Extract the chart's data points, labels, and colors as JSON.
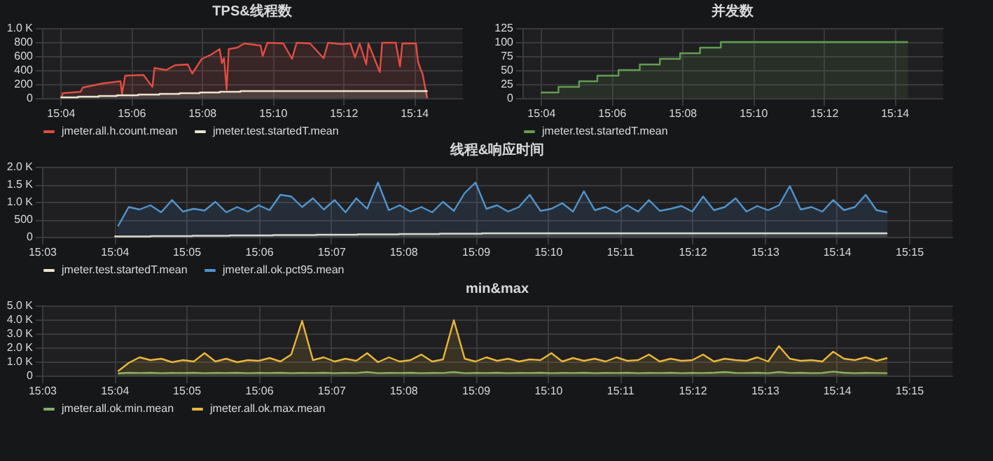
{
  "chart_data": [
    {
      "type": "area",
      "title": "TPS&线程数",
      "xlim": [
        15.058,
        15.256
      ],
      "xticks": [
        {
          "value": 15.0667,
          "label": "15:04"
        },
        {
          "value": 15.1,
          "label": "15:06"
        },
        {
          "value": 15.1333,
          "label": "15:08"
        },
        {
          "value": 15.1667,
          "label": "15:10"
        },
        {
          "value": 15.2,
          "label": "15:12"
        },
        {
          "value": 15.2333,
          "label": "15:14"
        }
      ],
      "ylim": [
        0,
        1000
      ],
      "yticks": [
        0,
        200,
        400,
        600,
        800,
        {
          "value": 1000,
          "label": "1.0 K"
        }
      ],
      "grid": true,
      "legend": "bottom",
      "series": [
        {
          "name": "jmeter.all.h.count.mean",
          "color": "#e24d42",
          "x": [
            15.0673,
            15.0678,
            15.0762,
            15.0772,
            15.0867,
            15.095,
            15.0957,
            15.0972,
            15.1058,
            15.11,
            15.111,
            15.1165,
            15.1207,
            15.1267,
            15.1288,
            15.1333,
            15.1377,
            15.1417,
            15.1428,
            15.1438,
            15.145,
            15.146,
            15.15,
            15.1533,
            15.161,
            15.162,
            15.1642,
            15.1717,
            15.1758,
            15.178,
            15.1843,
            15.1907,
            15.1928,
            15.1992,
            15.2033,
            15.2055,
            15.2077,
            15.2108,
            15.2118,
            15.2172,
            15.2183,
            15.2247,
            15.2267,
            15.2278,
            15.2333,
            15.2342,
            15.2352,
            15.2363,
            15.2373,
            15.2395
          ],
          "values": [
            20,
            70,
            90,
            150,
            210,
            240,
            60,
            320,
            330,
            160,
            430,
            400,
            470,
            480,
            350,
            560,
            620,
            700,
            500,
            570,
            120,
            700,
            720,
            780,
            750,
            600,
            790,
            780,
            560,
            790,
            780,
            570,
            790,
            770,
            780,
            580,
            780,
            480,
            780,
            370,
            790,
            790,
            450,
            780,
            780,
            780,
            520,
            420,
            350,
            0
          ]
        },
        {
          "name": "jmeter.test.startedT.mean",
          "color": "#eae6d0",
          "type": "step",
          "x": [
            15.0667,
            15.075,
            15.0847,
            15.0933,
            15.1033,
            15.1133,
            15.1228,
            15.1323,
            15.1417,
            15.1515,
            15.2397
          ],
          "values": [
            10,
            20,
            30,
            40,
            50,
            60,
            70,
            80,
            90,
            100,
            100
          ]
        }
      ]
    },
    {
      "type": "area",
      "title": "并发数",
      "xlim": [
        15.058,
        15.256
      ],
      "xticks": [
        {
          "value": 15.0667,
          "label": "15:04"
        },
        {
          "value": 15.1,
          "label": "15:06"
        },
        {
          "value": 15.1333,
          "label": "15:08"
        },
        {
          "value": 15.1667,
          "label": "15:10"
        },
        {
          "value": 15.2,
          "label": "15:12"
        },
        {
          "value": 15.2333,
          "label": "15:14"
        }
      ],
      "ylim": [
        0,
        125
      ],
      "yticks": [
        0,
        25,
        50,
        75,
        100,
        125
      ],
      "grid": true,
      "legend": "bottom",
      "series": [
        {
          "name": "jmeter.test.startedT.mean",
          "color": "#629e51",
          "x": [
            15.0667,
            15.075,
            15.075,
            15.0847,
            15.0847,
            15.0933,
            15.0933,
            15.1033,
            15.1033,
            15.1133,
            15.1133,
            15.1228,
            15.1228,
            15.1323,
            15.1323,
            15.1417,
            15.1417,
            15.1515,
            15.1515,
            15.2397
          ],
          "values": [
            10,
            10,
            20,
            20,
            30,
            30,
            40,
            40,
            50,
            50,
            60,
            60,
            70,
            70,
            80,
            80,
            90,
            90,
            100,
            100
          ]
        }
      ]
    },
    {
      "type": "area",
      "title": "线程&响应时间",
      "xlim": [
        15.05,
        15.26
      ],
      "xticks": [
        {
          "value": 15.05,
          "label": "15:03"
        },
        {
          "value": 15.0667,
          "label": "15:04"
        },
        {
          "value": 15.0833,
          "label": "15:05"
        },
        {
          "value": 15.1,
          "label": "15:06"
        },
        {
          "value": 15.1167,
          "label": "15:07"
        },
        {
          "value": 15.1333,
          "label": "15:08"
        },
        {
          "value": 15.15,
          "label": "15:09"
        },
        {
          "value": 15.1667,
          "label": "15:10"
        },
        {
          "value": 15.1833,
          "label": "15:11"
        },
        {
          "value": 15.2,
          "label": "15:12"
        },
        {
          "value": 15.2167,
          "label": "15:13"
        },
        {
          "value": 15.2333,
          "label": "15:14"
        },
        {
          "value": 15.25,
          "label": "15:15"
        }
      ],
      "ylim": [
        0,
        2000
      ],
      "yticks": [
        0,
        500,
        {
          "value": 1000,
          "label": "1.0 K"
        },
        {
          "value": 1500,
          "label": "1.5 K"
        },
        {
          "value": 2000,
          "label": "2.0 K"
        }
      ],
      "grid": true,
      "legend": "bottom",
      "x": [
        15.0675,
        15.07,
        15.0725,
        15.075,
        15.0775,
        15.08,
        15.0825,
        15.085,
        15.0875,
        15.09,
        15.0925,
        15.095,
        15.0975,
        15.1,
        15.1025,
        15.105,
        15.1075,
        15.11,
        15.1125,
        15.115,
        15.1175,
        15.12,
        15.1225,
        15.125,
        15.1275,
        15.13,
        15.1325,
        15.135,
        15.1375,
        15.14,
        15.1425,
        15.145,
        15.1475,
        15.15,
        15.1525,
        15.155,
        15.1575,
        15.16,
        15.1625,
        15.165,
        15.1675,
        15.17,
        15.1725,
        15.175,
        15.1775,
        15.18,
        15.1825,
        15.185,
        15.1875,
        15.19,
        15.1925,
        15.195,
        15.1975,
        15.2,
        15.2025,
        15.205,
        15.2075,
        15.21,
        15.2125,
        15.215,
        15.2175,
        15.22,
        15.2225,
        15.225,
        15.2275,
        15.23,
        15.2325,
        15.235,
        15.2375,
        15.24,
        15.2425,
        15.245
      ],
      "series": [
        {
          "name": "jmeter.test.startedT.mean",
          "color": "#eae6d0",
          "type": "step",
          "x": [
            15.0667,
            15.075,
            15.0847,
            15.0933,
            15.1033,
            15.1133,
            15.1228,
            15.1323,
            15.1417,
            15.1515,
            15.245
          ],
          "values": [
            10,
            20,
            30,
            40,
            50,
            60,
            70,
            80,
            90,
            100,
            100
          ]
        },
        {
          "name": "jmeter.all.ok.pct95.mean",
          "color": "#5195ce",
          "values": [
            300,
            850,
            780,
            900,
            700,
            1050,
            720,
            800,
            750,
            1000,
            700,
            850,
            720,
            900,
            760,
            1200,
            1150,
            850,
            1100,
            780,
            1050,
            700,
            1100,
            800,
            1550,
            760,
            900,
            720,
            850,
            700,
            1000,
            740,
            1250,
            1550,
            800,
            900,
            720,
            850,
            1200,
            740,
            800,
            960,
            720,
            1300,
            760,
            850,
            700,
            900,
            720,
            1050,
            740,
            800,
            880,
            720,
            1150,
            760,
            850,
            1100,
            720,
            880,
            760,
            900,
            1450,
            780,
            850,
            720,
            1050,
            760,
            850,
            1200,
            760,
            700
          ]
        }
      ]
    },
    {
      "type": "area",
      "title": "min&max",
      "xlim": [
        15.05,
        15.26
      ],
      "xticks": [
        {
          "value": 15.05,
          "label": "15:03"
        },
        {
          "value": 15.0667,
          "label": "15:04"
        },
        {
          "value": 15.0833,
          "label": "15:05"
        },
        {
          "value": 15.1,
          "label": "15:06"
        },
        {
          "value": 15.1167,
          "label": "15:07"
        },
        {
          "value": 15.1333,
          "label": "15:08"
        },
        {
          "value": 15.15,
          "label": "15:09"
        },
        {
          "value": 15.1667,
          "label": "15:10"
        },
        {
          "value": 15.1833,
          "label": "15:11"
        },
        {
          "value": 15.2,
          "label": "15:12"
        },
        {
          "value": 15.2167,
          "label": "15:13"
        },
        {
          "value": 15.2333,
          "label": "15:14"
        },
        {
          "value": 15.25,
          "label": "15:15"
        }
      ],
      "ylim": [
        0,
        5000
      ],
      "yticks": [
        0,
        {
          "value": 1000,
          "label": "1.0 K"
        },
        {
          "value": 2000,
          "label": "2.0 K"
        },
        {
          "value": 3000,
          "label": "3.0 K"
        },
        {
          "value": 4000,
          "label": "4.0 K"
        },
        {
          "value": 5000,
          "label": "5.0 K"
        }
      ],
      "grid": true,
      "legend": "bottom",
      "x": [
        15.0675,
        15.07,
        15.0725,
        15.075,
        15.0775,
        15.08,
        15.0825,
        15.085,
        15.0875,
        15.09,
        15.0925,
        15.095,
        15.0975,
        15.1,
        15.1025,
        15.105,
        15.1075,
        15.11,
        15.1125,
        15.115,
        15.1175,
        15.12,
        15.1225,
        15.125,
        15.1275,
        15.13,
        15.1325,
        15.135,
        15.1375,
        15.14,
        15.1425,
        15.145,
        15.1475,
        15.15,
        15.1525,
        15.155,
        15.1575,
        15.16,
        15.1625,
        15.165,
        15.1675,
        15.17,
        15.1725,
        15.175,
        15.1775,
        15.18,
        15.1825,
        15.185,
        15.1875,
        15.19,
        15.1925,
        15.195,
        15.1975,
        15.2,
        15.2025,
        15.205,
        15.2075,
        15.21,
        15.2125,
        15.215,
        15.2175,
        15.22,
        15.2225,
        15.225,
        15.2275,
        15.23,
        15.2325,
        15.235,
        15.2375,
        15.24,
        15.2425,
        15.245
      ],
      "series": [
        {
          "name": "jmeter.all.ok.min.mean",
          "color": "#7eb26d",
          "values": [
            150,
            200,
            180,
            200,
            170,
            190,
            180,
            200,
            170,
            190,
            180,
            200,
            170,
            190,
            180,
            200,
            170,
            190,
            180,
            200,
            170,
            190,
            180,
            250,
            170,
            190,
            180,
            200,
            170,
            190,
            180,
            250,
            170,
            190,
            180,
            200,
            170,
            190,
            180,
            200,
            170,
            190,
            180,
            200,
            170,
            190,
            180,
            200,
            170,
            190,
            180,
            200,
            170,
            190,
            180,
            200,
            250,
            190,
            180,
            200,
            170,
            250,
            180,
            200,
            170,
            190,
            280,
            200,
            170,
            190,
            180,
            170
          ]
        },
        {
          "name": "jmeter.all.ok.max.mean",
          "color": "#eab839",
          "values": [
            300,
            900,
            1300,
            1100,
            1200,
            950,
            1100,
            1000,
            1600,
            1000,
            1200,
            950,
            1100,
            1050,
            1250,
            1000,
            1500,
            3900,
            1100,
            1300,
            1000,
            1200,
            1050,
            1600,
            950,
            1300,
            1000,
            1100,
            1500,
            1000,
            1150,
            3950,
            1200,
            1000,
            1300,
            1050,
            1200,
            1000,
            1150,
            1100,
            1600,
            1000,
            1250,
            1050,
            1200,
            1000,
            1300,
            1050,
            1100,
            1500,
            1000,
            1200,
            1050,
            1100,
            1500,
            1000,
            1200,
            1100,
            1050,
            1300,
            1000,
            2100,
            1200,
            1050,
            1100,
            1000,
            1700,
            1200,
            1100,
            1300,
            1050,
            1250
          ]
        }
      ]
    }
  ]
}
